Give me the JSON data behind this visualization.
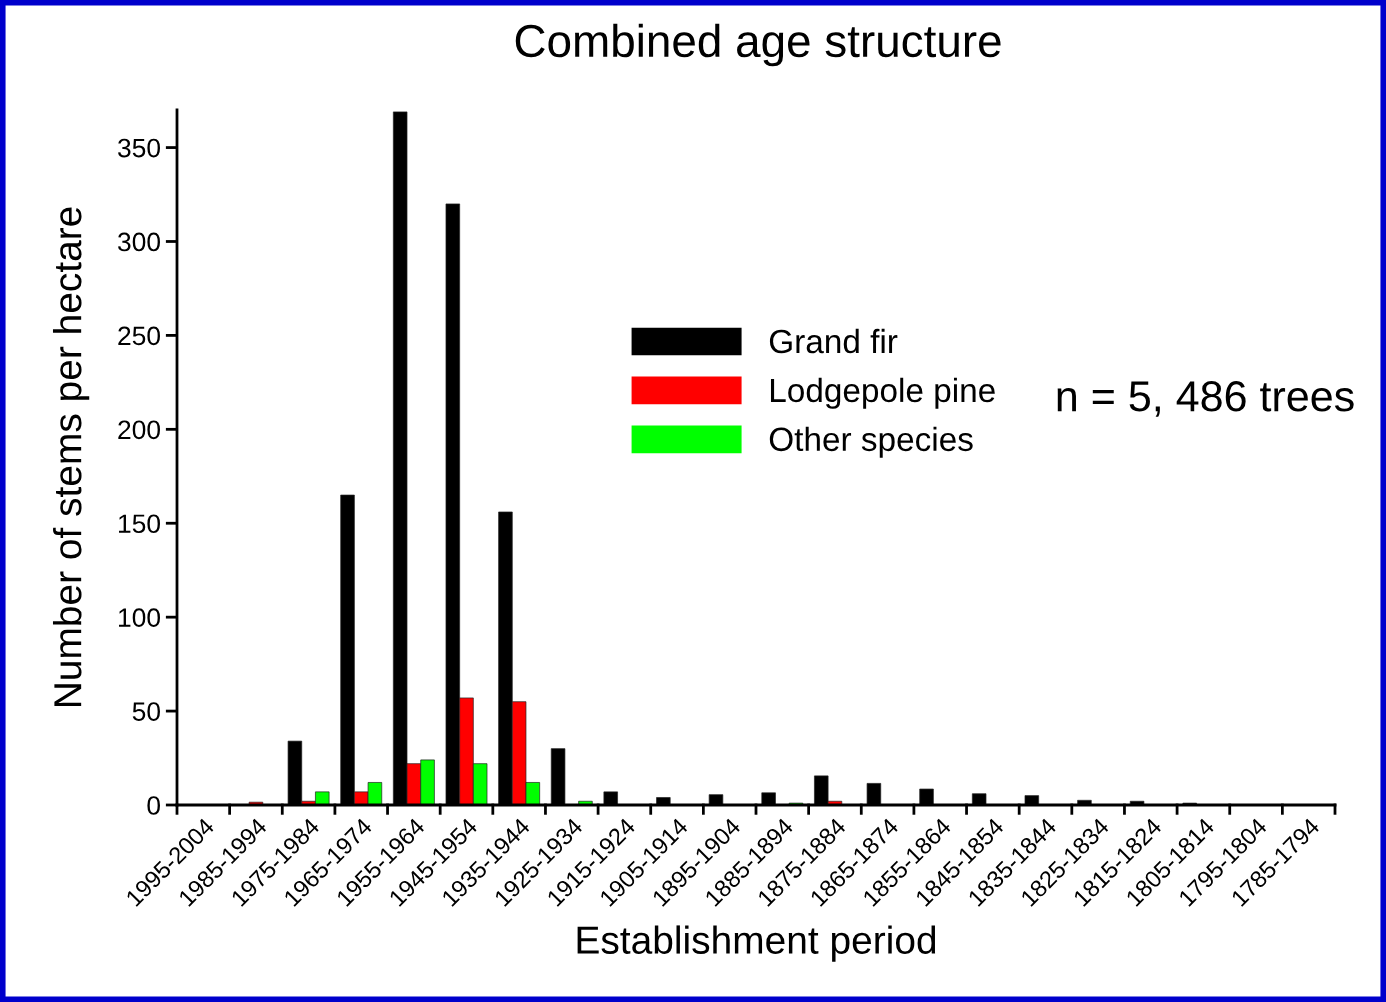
{
  "chart_data": {
    "type": "bar",
    "title": "Combined age structure",
    "xlabel": "Establishment period",
    "ylabel": "Number of stems per hectare",
    "categories": [
      "1995-2004",
      "1985-1994",
      "1975-1984",
      "1965-1974",
      "1955-1964",
      "1945-1954",
      "1935-1944",
      "1925-1934",
      "1915-1924",
      "1905-1914",
      "1895-1904",
      "1885-1894",
      "1875-1884",
      "1865-1874",
      "1855-1864",
      "1845-1854",
      "1835-1844",
      "1825-1834",
      "1815-1824",
      "1805-1814",
      "1795-1804",
      "1785-1794"
    ],
    "series": [
      {
        "name": "Grand fir",
        "color": "#000000",
        "values": [
          0,
          0,
          34,
          165,
          369,
          320,
          156,
          30,
          7,
          4,
          5.5,
          6.5,
          15.5,
          11.5,
          8.5,
          6,
          5,
          2.5,
          2,
          1,
          0,
          0
        ]
      },
      {
        "name": "Lodgepole pine",
        "color": "#ff0000",
        "values": [
          0,
          1.5,
          2,
          7,
          22,
          57,
          55,
          0,
          0,
          0,
          0,
          0,
          2,
          0,
          0,
          0,
          0,
          0,
          0,
          0,
          0,
          0
        ]
      },
      {
        "name": "Other species",
        "color": "#00ff00",
        "values": [
          0,
          0,
          7,
          12,
          24,
          22,
          12,
          2,
          0,
          0,
          0,
          1,
          0,
          0,
          0,
          0,
          0,
          0,
          0,
          0,
          0,
          0
        ]
      }
    ],
    "ylim": [
      0,
      370
    ],
    "yticks": [
      0,
      50,
      100,
      150,
      200,
      250,
      300,
      350
    ],
    "grid": false,
    "legend": "top",
    "annotations": [
      "n = 5, 486 trees"
    ]
  }
}
